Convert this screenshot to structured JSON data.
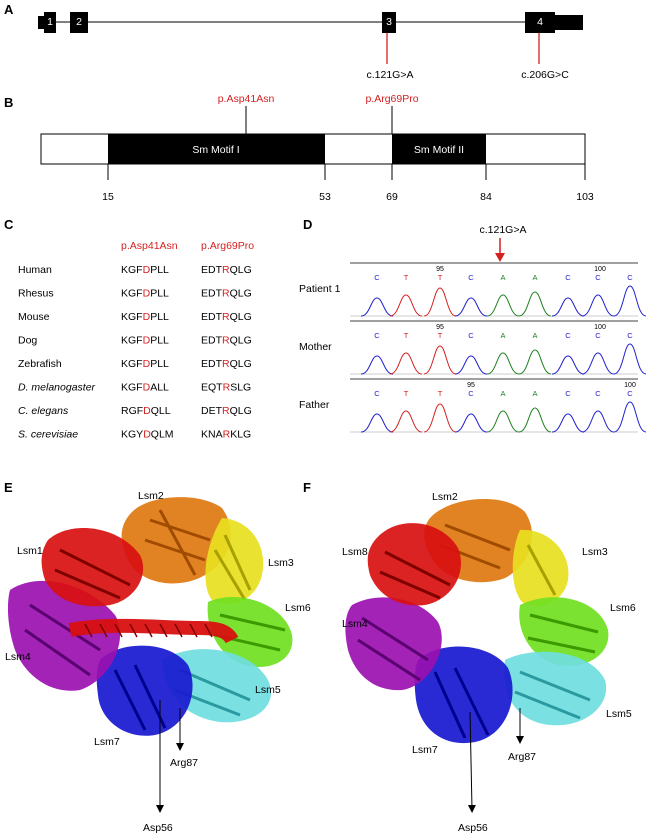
{
  "panel_letters": [
    "A",
    "B",
    "C",
    "D",
    "E",
    "F"
  ],
  "panel_a": {
    "exons": [
      "1",
      "2",
      "3",
      "4"
    ],
    "variants": [
      "c.121G>A",
      "c.206G>C"
    ]
  },
  "panel_b": {
    "motif1": "Sm Motif I",
    "motif2": "Sm Motif II",
    "mut1": "p.Asp41Asn",
    "mut2": "p.Arg69Pro",
    "ticks": [
      "15",
      "53",
      "69",
      "84",
      "103"
    ]
  },
  "panel_c": {
    "header1": "p.Asp41Asn",
    "header2": "p.Arg69Pro",
    "rows": [
      {
        "species": "Human",
        "italic": false,
        "s1": [
          "KGF",
          "D",
          "PLL"
        ],
        "s2": [
          "EDT",
          "R",
          "QLG"
        ]
      },
      {
        "species": "Rhesus",
        "italic": false,
        "s1": [
          "KGF",
          "D",
          "PLL"
        ],
        "s2": [
          "EDT",
          "R",
          "QLG"
        ]
      },
      {
        "species": "Mouse",
        "italic": false,
        "s1": [
          "KGF",
          "D",
          "PLL"
        ],
        "s2": [
          "EDT",
          "R",
          "QLG"
        ]
      },
      {
        "species": "Dog",
        "italic": false,
        "s1": [
          "KGF",
          "D",
          "PLL"
        ],
        "s2": [
          "EDT",
          "R",
          "QLG"
        ]
      },
      {
        "species": "Zebrafish",
        "italic": false,
        "s1": [
          "KGF",
          "D",
          "PLL"
        ],
        "s2": [
          "EDT",
          "R",
          "QLG"
        ]
      },
      {
        "species": "D. melanogaster",
        "italic": true,
        "s1": [
          "KGF",
          "D",
          "ALL"
        ],
        "s2": [
          "EQT",
          "R",
          "SLG"
        ]
      },
      {
        "species": "C. elegans",
        "italic": true,
        "s1": [
          "RGF",
          "D",
          "QLL"
        ],
        "s2": [
          "DET",
          "R",
          "QLG"
        ]
      },
      {
        "species": "S. cerevisiae",
        "italic": true,
        "s1": [
          "KGY",
          "D",
          "QLM"
        ],
        "s2": [
          "KNA",
          "R",
          "KLG"
        ]
      }
    ]
  },
  "panel_d": {
    "variant": "c.121G>A",
    "bases": [
      "C",
      "T",
      "T",
      "C",
      "A",
      "A",
      "C",
      "C",
      "C"
    ],
    "tracks": [
      {
        "label": "Patient 1",
        "pos95": "95",
        "pos100": "100"
      },
      {
        "label": "Mother",
        "pos95": "95",
        "pos100": "100"
      },
      {
        "label": "Father",
        "pos95": "95",
        "pos100": "100"
      }
    ],
    "colors": {
      "C": "#2020d0",
      "T": "#d42020",
      "A": "#208020",
      "G": "#000000"
    }
  },
  "panel_e": {
    "subunits": [
      "Lsm2",
      "Lsm1",
      "Lsm3",
      "Lsm6",
      "Lsm4",
      "Lsm5",
      "Lsm7"
    ],
    "residues": [
      "Arg87",
      "Asp56"
    ]
  },
  "panel_f": {
    "subunits": [
      "Lsm2",
      "Lsm8",
      "Lsm3",
      "Lsm6",
      "Lsm4",
      "Lsm5",
      "Lsm7"
    ],
    "residues": [
      "Arg87",
      "Asp56"
    ]
  },
  "colors": {
    "highlight_red": "#d42020",
    "lsm2": "#e07810",
    "lsm3": "#e8e020",
    "lsm6": "#70e020",
    "lsm5": "#70dde0",
    "lsm7": "#1818d0",
    "lsm4": "#9a10b0",
    "lsm1": "#d81010"
  }
}
